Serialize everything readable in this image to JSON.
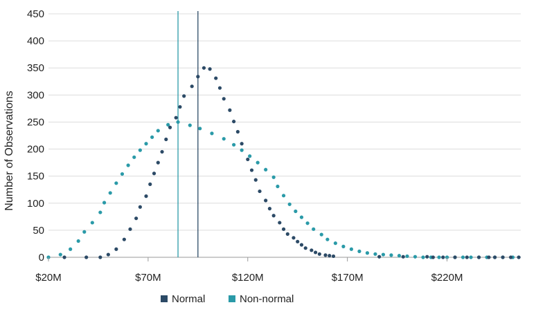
{
  "chart_data": {
    "type": "scatter",
    "title": "",
    "xlabel": "",
    "ylabel": "Number of Observations",
    "xlim": [
      20,
      257
    ],
    "ylim": [
      0,
      450
    ],
    "x_ticks": [
      20,
      70,
      120,
      170,
      220
    ],
    "x_tick_labels": [
      "$20M",
      "$70M",
      "$120M",
      "$170M",
      "$220M"
    ],
    "y_ticks": [
      0,
      50,
      100,
      150,
      200,
      250,
      300,
      350,
      400,
      450
    ],
    "y_tick_labels": [
      "0",
      "50",
      "100",
      "150",
      "200",
      "250",
      "300",
      "350",
      "400",
      "450"
    ],
    "grid": "horizontal",
    "legend_position": "bottom-center",
    "reference_lines": [
      {
        "series": "Normal",
        "x": 95
      },
      {
        "series": "Non-normal",
        "x": 85
      }
    ],
    "series": [
      {
        "name": "Normal",
        "color": "#2c4a66",
        "points": [
          [
            28,
            0
          ],
          [
            39,
            0
          ],
          [
            46,
            0
          ],
          [
            50,
            5
          ],
          [
            54,
            15
          ],
          [
            58,
            33
          ],
          [
            61,
            52
          ],
          [
            64,
            72
          ],
          [
            66,
            93
          ],
          [
            69,
            113
          ],
          [
            71,
            135
          ],
          [
            73,
            155
          ],
          [
            75,
            175
          ],
          [
            77,
            195
          ],
          [
            79,
            218
          ],
          [
            81,
            240
          ],
          [
            84,
            258
          ],
          [
            86,
            278
          ],
          [
            88,
            298
          ],
          [
            92,
            316
          ],
          [
            95,
            334
          ],
          [
            98,
            350
          ],
          [
            101,
            348
          ],
          [
            104,
            331
          ],
          [
            106,
            313
          ],
          [
            108,
            293
          ],
          [
            111,
            272
          ],
          [
            113,
            251
          ],
          [
            115,
            232
          ],
          [
            117,
            210
          ],
          [
            120,
            181
          ],
          [
            122,
            161
          ],
          [
            124,
            143
          ],
          [
            126,
            122
          ],
          [
            129,
            105
          ],
          [
            131,
            90
          ],
          [
            133,
            77
          ],
          [
            136,
            64
          ],
          [
            138,
            52
          ],
          [
            140,
            43
          ],
          [
            143,
            36
          ],
          [
            145,
            29
          ],
          [
            147,
            23
          ],
          [
            149,
            17
          ],
          [
            152,
            13
          ],
          [
            154,
            9
          ],
          [
            156,
            6
          ],
          [
            159,
            4
          ],
          [
            161,
            3
          ],
          [
            163,
            2
          ],
          [
            186,
            1
          ],
          [
            198,
            1
          ],
          [
            210,
            1
          ],
          [
            213,
            0
          ],
          [
            218,
            0
          ],
          [
            224,
            0
          ],
          [
            230,
            0
          ],
          [
            236,
            0
          ],
          [
            241,
            0
          ],
          [
            244,
            0
          ],
          [
            248,
            0
          ],
          [
            252,
            0
          ],
          [
            256,
            0
          ]
        ]
      },
      {
        "name": "Non-normal",
        "color": "#2a9aa8",
        "points": [
          [
            20,
            0
          ],
          [
            26,
            5
          ],
          [
            31,
            15
          ],
          [
            35,
            30
          ],
          [
            38,
            47
          ],
          [
            42,
            64
          ],
          [
            46,
            83
          ],
          [
            48,
            101
          ],
          [
            51,
            119
          ],
          [
            54,
            137
          ],
          [
            57,
            154
          ],
          [
            60,
            170
          ],
          [
            63,
            185
          ],
          [
            66,
            198
          ],
          [
            69,
            210
          ],
          [
            72,
            222
          ],
          [
            75,
            234
          ],
          [
            80,
            245
          ],
          [
            85,
            250
          ],
          [
            91,
            244
          ],
          [
            96,
            238
          ],
          [
            102,
            229
          ],
          [
            108,
            219
          ],
          [
            113,
            208
          ],
          [
            117,
            198
          ],
          [
            121,
            187
          ],
          [
            125,
            175
          ],
          [
            129,
            162
          ],
          [
            133,
            148
          ],
          [
            135,
            131
          ],
          [
            138,
            114
          ],
          [
            141,
            98
          ],
          [
            144,
            85
          ],
          [
            147,
            74
          ],
          [
            150,
            63
          ],
          [
            153,
            52
          ],
          [
            157,
            42
          ],
          [
            160,
            33
          ],
          [
            164,
            26
          ],
          [
            168,
            20
          ],
          [
            172,
            15
          ],
          [
            176,
            11
          ],
          [
            180,
            8
          ],
          [
            184,
            6
          ],
          [
            188,
            5
          ],
          [
            192,
            4
          ],
          [
            196,
            3
          ],
          [
            200,
            2
          ],
          [
            204,
            1
          ],
          [
            208,
            0
          ],
          [
            212,
            0
          ],
          [
            216,
            0
          ],
          [
            220,
            0
          ],
          [
            224,
            0
          ],
          [
            228,
            0
          ],
          [
            232,
            0
          ],
          [
            236,
            0
          ],
          [
            240,
            0
          ],
          [
            244,
            0
          ],
          [
            248,
            0
          ],
          [
            253,
            0
          ]
        ]
      }
    ]
  }
}
